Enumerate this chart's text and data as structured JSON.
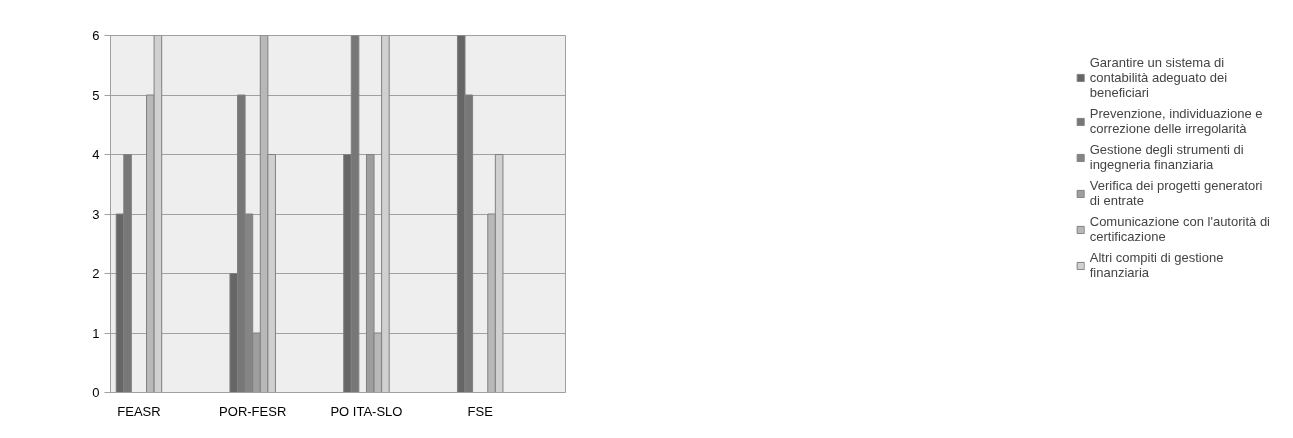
{
  "chart_data": {
    "type": "bar",
    "categories": [
      "FEASR",
      null,
      "POR-FESR",
      null,
      "PO ITA-SLO",
      null,
      "FSE",
      null
    ],
    "series": [
      {
        "name": "Garantire un sistema di contabilità adeguato dei beneficiari",
        "color": "#666666",
        "values": [
          3,
          null,
          2,
          null,
          4,
          null,
          6,
          null
        ]
      },
      {
        "name": "Prevenzione, individuazione e correzione delle irregolarità",
        "color": "#777777",
        "values": [
          4,
          null,
          5,
          null,
          6,
          null,
          5,
          null
        ]
      },
      {
        "name": "Gestione degli strumenti di ingegneria finanziaria",
        "color": "#858585",
        "values": [
          null,
          null,
          3,
          null,
          null,
          null,
          null,
          null
        ]
      },
      {
        "name": "Verifica dei progetti generatori di entrate",
        "color": "#9e9e9e",
        "values": [
          null,
          null,
          1,
          null,
          4,
          null,
          null,
          null
        ]
      },
      {
        "name": "Comunicazione con l'autorità di certificazione",
        "color": "#b8b8b8",
        "values": [
          5,
          null,
          6,
          null,
          1,
          null,
          3,
          null
        ]
      },
      {
        "name": "Altri compiti di gestione finanziaria",
        "color": "#d0d0d0",
        "values": [
          6,
          null,
          4,
          null,
          6,
          null,
          4,
          null
        ]
      }
    ],
    "ylim": [
      0,
      6
    ],
    "yticks": [
      0,
      1,
      2,
      3,
      4,
      5,
      6
    ],
    "grid": "y",
    "legend": "right"
  }
}
